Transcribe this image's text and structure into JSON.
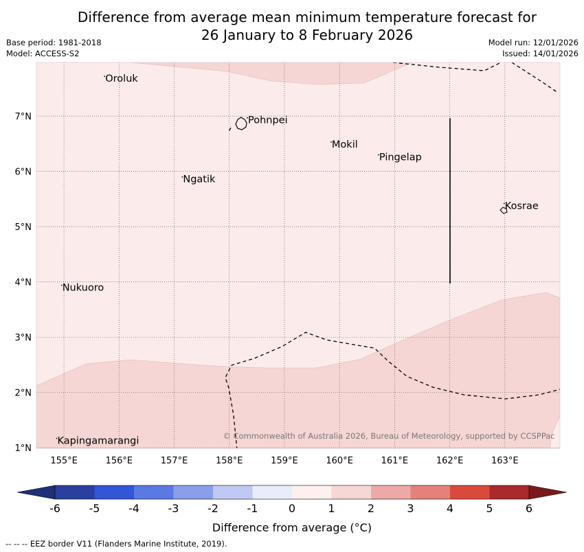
{
  "title": {
    "line1": "Difference from average mean minimum temperature forecast for",
    "line2": "26 January to 8 February 2026"
  },
  "meta": {
    "base_period": "Base period: 1981-2018",
    "model": "Model: ACCESS-S2",
    "model_run": "Model run: 12/01/2026",
    "issued": "Issued: 14/01/2026"
  },
  "map": {
    "lon_labels": [
      "155°E",
      "156°E",
      "157°E",
      "158°E",
      "159°E",
      "160°E",
      "161°E",
      "162°E",
      "163°E"
    ],
    "lat_labels": [
      "7°N",
      "6°N",
      "5°N",
      "4°N",
      "3°N",
      "2°N",
      "1°N"
    ],
    "places": [
      {
        "name": "Oroluk",
        "lon": 155.75,
        "lat": 7.62
      },
      {
        "name": "Pohnpei",
        "lon": 158.34,
        "lat": 6.87
      },
      {
        "name": "Mokil",
        "lon": 159.86,
        "lat": 6.43
      },
      {
        "name": "Pingelap",
        "lon": 160.72,
        "lat": 6.2
      },
      {
        "name": "Ngatik",
        "lon": 157.16,
        "lat": 5.8
      },
      {
        "name": "Kosrae",
        "lon": 163.0,
        "lat": 5.32
      },
      {
        "name": "Nukuoro",
        "lon": 154.97,
        "lat": 3.84
      },
      {
        "name": "Kapingamarangi",
        "lon": 154.88,
        "lat": 1.07
      }
    ],
    "copyright": "© Commonwealth of Australia 2026, Bureau of Meteorology, supported by CCSPPac"
  },
  "colorbar": {
    "ticks": [
      "-6",
      "-5",
      "-4",
      "-3",
      "-2",
      "-1",
      "0",
      "1",
      "2",
      "3",
      "4",
      "5",
      "6"
    ],
    "colors": [
      "#2a3f9e",
      "#3356d6",
      "#5c78e2",
      "#8a9ee9",
      "#c0c9f3",
      "#e9ecfb",
      "#fdf0ee",
      "#f7d6d5",
      "#eda9a6",
      "#e5817b",
      "#d94a3d",
      "#a9292c"
    ],
    "under_color": "#1f2f78",
    "over_color": "#7a1a1c",
    "label": "Difference from average (°C)"
  },
  "footnote": "--  --  -- EEZ border V11 (Flanders Marine Institute, 2019).",
  "colors": {
    "light_anomaly": "#fbeceb",
    "medium_anomaly": "#f5d6d5",
    "contour_edge": "#e3b6b4"
  }
}
